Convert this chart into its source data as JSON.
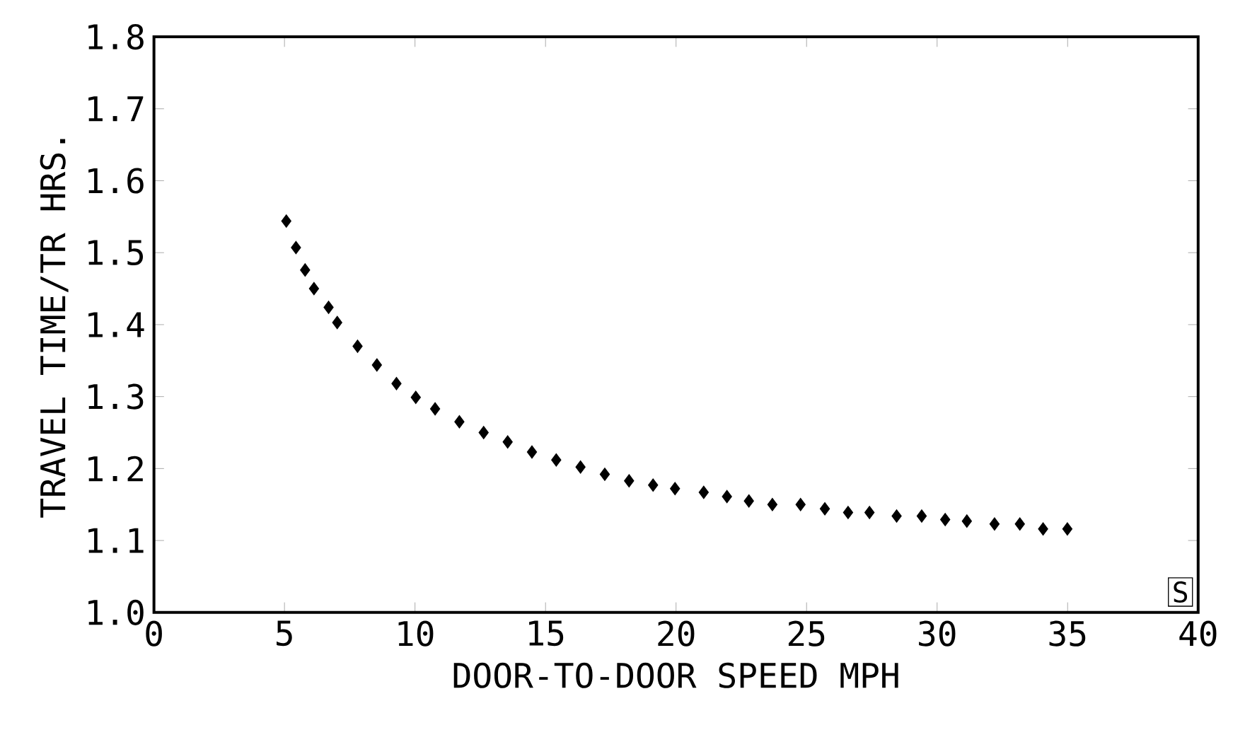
{
  "chart_data": {
    "type": "scatter",
    "xlabel": "DOOR-TO-DOOR SPEED   MPH",
    "ylabel": "TRAVEL TIME/TR  HRS.",
    "xlim": [
      0,
      40
    ],
    "xticks": [
      0,
      5,
      10,
      15,
      20,
      25,
      30,
      35,
      40
    ],
    "ylim": [
      1.0,
      1.8
    ],
    "yticks": [
      {
        "value": 1.0,
        "label": "1.0"
      },
      1.1,
      1.2,
      1.3,
      1.4,
      1.5,
      1.6,
      1.7,
      1.8
    ],
    "marker": "diamond",
    "annotations": [
      "S"
    ],
    "series": [
      {
        "color": "#000000",
        "x": [
          5.07,
          5.44,
          5.79,
          6.13,
          6.69,
          7.02,
          7.8,
          8.54,
          9.29,
          10.03,
          10.77,
          11.7,
          12.63,
          13.55,
          14.48,
          15.41,
          16.34,
          17.27,
          18.2,
          19.12,
          19.96,
          21.06,
          21.95,
          22.79,
          23.69,
          24.77,
          25.7,
          26.59,
          27.41,
          28.45,
          29.41,
          30.31,
          31.14,
          32.2,
          33.17,
          34.06,
          34.99
        ],
        "values": [
          1.544,
          1.507,
          1.476,
          1.45,
          1.424,
          1.403,
          1.37,
          1.344,
          1.318,
          1.299,
          1.283,
          1.265,
          1.25,
          1.237,
          1.223,
          1.212,
          1.202,
          1.192,
          1.183,
          1.177,
          1.172,
          1.167,
          1.161,
          1.155,
          1.15,
          1.15,
          1.144,
          1.139,
          1.139,
          1.134,
          1.134,
          1.129,
          1.127,
          1.123,
          1.123,
          1.116,
          1.116
        ]
      }
    ]
  }
}
